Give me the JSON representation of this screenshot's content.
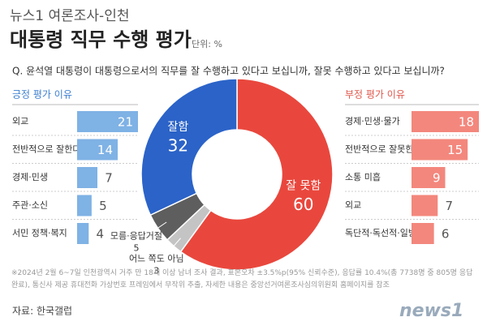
{
  "header": {
    "kicker": "뉴스1 여론조사-인천",
    "title": "대통령 직무 수행 평가",
    "unit": "단위: %",
    "question": "Q. 윤석열 대통령이 대통령으로서의 직무를 잘 수행하고 있다고 보십니까, 잘못 수행하고 있다고 보십니까?"
  },
  "chart_data": [
    {
      "type": "bar",
      "title": "긍정 평가 이유",
      "categories": [
        "외교",
        "전반적으로 잘한다",
        "경제·민생",
        "주관·소신",
        "서민 정책·복지"
      ],
      "values": [
        21,
        14,
        7,
        5,
        4
      ],
      "color": "#7fb2e5"
    },
    {
      "type": "pie",
      "categories": [
        "잘 못함",
        "어느 쪽도 아님",
        "모름·응답거절",
        "잘함"
      ],
      "values": [
        60,
        3,
        5,
        32
      ],
      "colors": [
        "#e9473d",
        "#c4c4c4",
        "#5e5e5e",
        "#2b63c8"
      ]
    },
    {
      "type": "bar",
      "title": "부정 평가 이유",
      "categories": [
        "경제·민생·물가",
        "전반적으로 잘못한다",
        "소통 미흡",
        "외교",
        "독단적·독선적·일방적"
      ],
      "values": [
        18,
        15,
        9,
        7,
        6
      ],
      "color": "#f3877d"
    }
  ],
  "footer": {
    "note": "※2024년 2월 6~7일 인천광역시 거주 만 18세 이상 남녀 조사 결과, 표본오차 ±3.5%p(95% 신뢰수준), 응답률 10.4%(총 7738명 중 805명 응답 완료), 통신사 제공 휴대전화 가상번호 프레임에서 무작위 추출, 자세한 내용은 중앙선거여론조사심의위원회 홈페이지를 참조",
    "source": "자료: 한국갤럽",
    "logo": "news1"
  }
}
